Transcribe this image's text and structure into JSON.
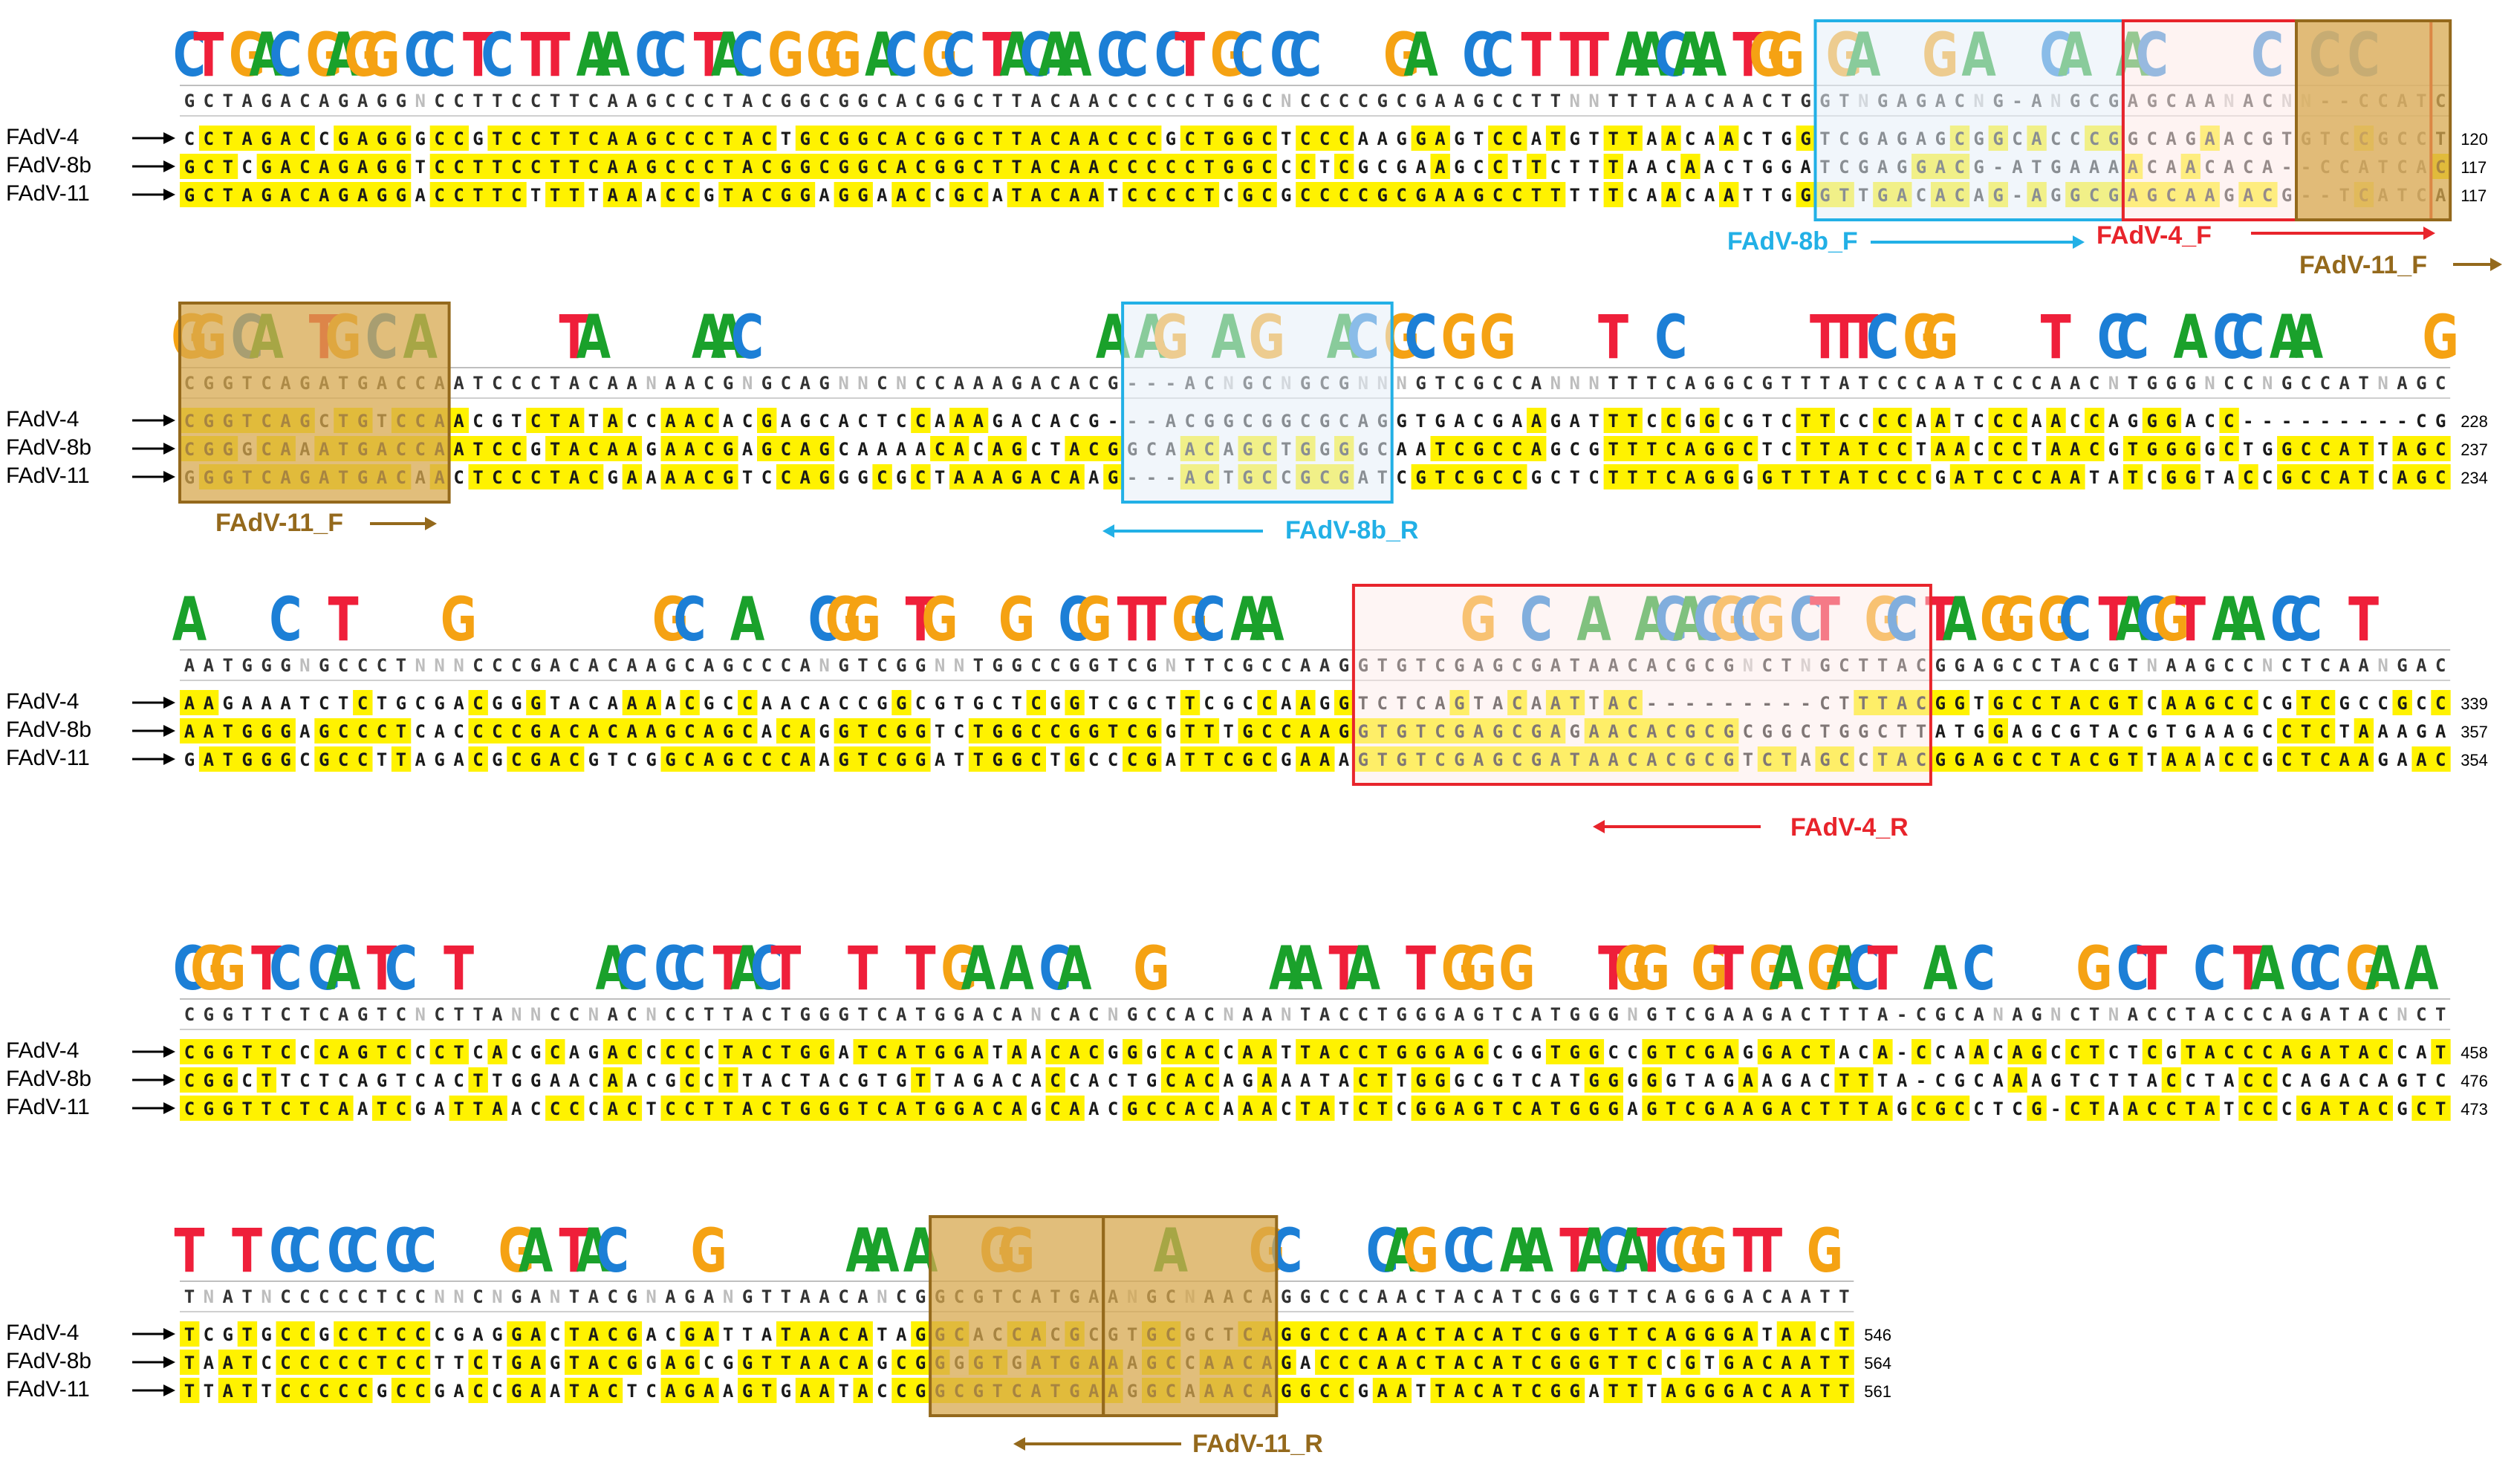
{
  "colors": {
    "A": "#1aa12b",
    "C": "#1c7fd6",
    "G": "#f5a213",
    "T": "#ef1f3a",
    "N": "#9a9a9a",
    "identity": "#fff200",
    "primer_8b": "#22b0e6",
    "primer_4": "#e8242b",
    "primer_11": "#94691c",
    "primer_11_fill": "#d7a84f",
    "primer_8b_fill": "#e6eef8",
    "primer_4_fill": "#fde9e7",
    "consensus": "#333333"
  },
  "row_labels": [
    "FAdV-4",
    "FAdV-8b",
    "FAdV-11"
  ],
  "blocks": [
    {
      "logo": "CT GAC GAGG CC TC TT AA CC TAC G GG AC GC TACAA CC CT GC CC    GA  CC T TT AACAA TGG  GA   G A   CA  AC     C  C C",
      "consensus": "GCTAGACAGAGGNCCTTCCTTCAAGCCCTACGGCGGCACGGCTTACAACCCCCTGGCNCCCCGCGAAGCCTTNNTTTAACAACTGGTNGAGACNG-ANGCGAGCAANACNN--CCATCAC",
      "seqs": [
        "CCTAGACCGAGGGCCGTCCTTCAAGCCCTACTGCGGCACGGCTTACAACCCGCTGGCTCCCAAGGAGTCCATGTTTAACAACTGGTCGAGAGCGGCACCCGGCAGAACGTGTCCGCCTC",
        "GCTCGACAGAGGTCCTTCCTTCAAGCCCTACGGCGGCACGGCTTACAACCCCCTGGCCCTCGCGAAGCCTTCTTTAACAACTGGATCGAGGACG-ATGAAAACAACACA--CCATCAC",
        "GCTAGACAGAGGACCTTCTTTTAAACCGTACGGAGGAACCGCATACAATCCCCTCGCGCCCCGCGAAGCCTTTTTCAACAATTGGGTTGACACAG-AGGCGAGCAAGACG--TCATCAC"
      ],
      "positions": [
        "120",
        "117",
        "117"
      ]
    },
    {
      "logo": "GG CA  TG C A       TA     AAC                  A AG  A G   AC GC G G     T  C       TTTC GG     T  CC  A CC AA      GG      GCCAT AGCG",
      "consensus": "CGGTCAGATGACCAATCCCTACAANAACGNGCAGNNCNCCAAAGACACG---ACNGCNGCGNNNGTCGCCANNNTTTCAGGCGTTTATCCCAATCCCAACNTGGGNCCNGCCATNAGCGA",
      "seqs": [
        "CGGTCAGCTGTCCAACGTCTATACCAACACGAGCACTCCAAAGACACG---ACGGCGGCGCAGGTGACGAAGATTTCCGGCGTCTTCCCCAATCCCAACCAGGGACC---------CGG",
        "CGGGCAAATGACCAATCCGTACAAGAACGAGCAGCAAAACACAGCTACGGCAACAGCTGGGGCAATCGCCAGCGTTTCAGGCTCTTATCCTAACCCTAACGTGGGGCTGGCCATTAGCGA",
        "GGGTCAGATGACAACTCCCTACGAAAACGTCCAGGGCGCTAAAGACAAG---ACTGCCGCGATCGTCGCCGCTCTTTCAGGGGTTTATCCCGATCCCAATATCGGTACCGCCATCAGCGA"
      ],
      "positions": [
        "228",
        "237",
        "234"
      ]
    },
    {
      "logo": "A    C  T     G          GC  A   CGG  TG   G  CG TT GC AA          G  C  A  ACACGCG CT  GC TA GG GC TACGT AA CC  T      CGA",
      "consensus": "AATGGGNGCCCTNNNCCCGACACAAGCAGCCCANGTCGGNNTGGCCGGTCGNTTCGCCAAGGTGTCGAGCGATAACACGCGNCTNGCTTACGGAGCCTACGTNAAGCCNCTCAANGACGA",
      "seqs": [
        "AAGAAATCTCTGCGACGGGTACAAAACGCCAACACCGGCGTGCTCGGTCGCTTCGCCAAGGTCTCAGTACAATTAC---------CTTTACGGTGCCTACGTCAAGCCCGTCGCCGCCGA",
        "AATGGGAGCCCTCACCCCGACACAAGCAGCACAGGTCGGTCTGGCCGGTCGGTTTGCCAAGGTGTCGAGCGAGAACACGCGCGGCTGGCTTATGGAGCGTACGTGAAGCCTCTAAAGACGA",
        "GATGGGCGCCTTAGACGCGACGTCGGCAGCCCAAGTCGGATTGGCTGCCCGATTCGCGAAAGTGTCGAGCGATAACACGCGTCTAGCCTACGGAGCCTACGTTAAACCGCTCAAGAACGA"
      ],
      "positions": [
        "339",
        "357",
        "354"
      ]
    },
    {
      "logo": "CGG TC CA TC  T       AC CC TACT   T  T GA A CA   G      AA TA  T GG G    TGG  GT GA GACT  A C     G CT  C TA CC GA A    T",
      "consensus": "CGGTTCTCAGTCNCTTANNCCNACNCCTTACTGGGTCATGGACANCACNGCCACNAANTACCTGGGAGTCATGGGNGTCGAAGACTTTA-CGCANAGNCTNACCTACCCAGATACNCTNN",
      "seqs": [
        "CGGTTCCCAGTCCCTCACGCAGACCCCCTACTGGATCATGGATAACACGGGCACCAATTACCTGGGAGCGGTGGCCGTCGAGGACTACA-CCAACAGCCTCTCGTACCCAGATACCATAG",
        "CGGCTTCTCAGTCACTTGGAACAACGCCTTACTACGTGTTAGACACCACTGCACAGAAATACTTGGGCGTCATGGGGGTAGAAGACTTTA-CGCAAAGTCTTACCTACCCAGACAGTCTGT",
        "CGGTTCTCAATCGATTAACCCCACTCCTTACTGGGTCATGGACAGCAACGCCACAAACTATCTCGGAGTCATGGGAGTCGAAGACTTTAGCGCCTCG-CTAACCTATCCCGATACGCTCC"
      ],
      "positions": [
        "458",
        "476",
        "473"
      ]
    },
    {
      "logo": "T  T CC CC CC    GA TAC    G       AA A   GG       A    GC    CAG CC AA TACATCGG TT  G GA AA TT",
      "consensus": "TNATNCCCCCTCCNNCNGANTACGNAGANGTTAACANCGGCGTCATGAANGCNAACAGGCCCAACTACATCGGGTTCAGGGACAATTT",
      "seqs": [
        "TCGTGCCGCCTCCCGAGGACTACGACGATTATAACATAGGCACCACGCGTGCGCTCAGGCCCAACTACATCGGGTTCAGGGATAACTT",
        "TAATCCCCCCTCCTTCTGAGTACGGAGCGGTTAACAGCGGGGTGATGAAAGCCAACAGACCCAACTACATCGGGTTCCGTGACAATTT",
        "TTATTCCCCCGCCGACCGAATACTCAGAAGTGAATACCGGCGTCATGAAGGCAAACAGGCCGAATTACATCGGATTTAGGGACAATTT"
      ],
      "positions": [
        "546",
        "564",
        "561"
      ]
    }
  ],
  "primers": {
    "fadv8b_f": "FAdV-8b_F",
    "fadv4_f": "FAdV-4_F",
    "fadv11_f": "FAdV-11_F",
    "fadv11_f_2": "FAdV-11_F",
    "fadv8b_r": "FAdV-8b_R",
    "fadv4_r": "FAdV-4_R",
    "fadv11_r": "FAdV-11_R"
  }
}
